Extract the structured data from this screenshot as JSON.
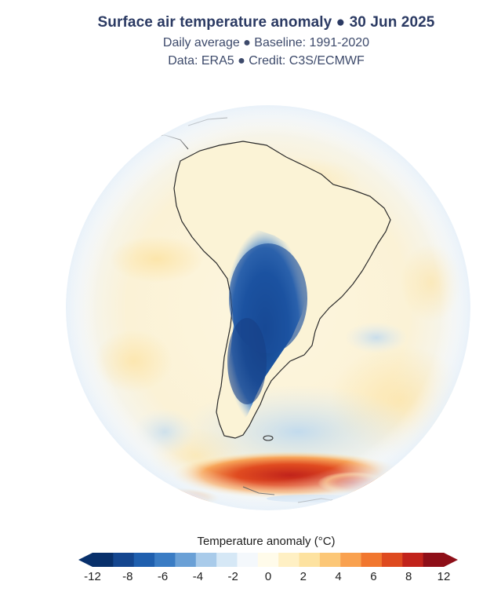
{
  "header": {
    "title": "Surface air temperature anomaly ● 30 Jun 2025",
    "subtitle": "Daily average ● Baseline: 1991-2020",
    "credit": "Data: ERA5 ● Credit: C3S/ECMWF"
  },
  "legend": {
    "title": "Temperature anomaly (°C)",
    "ticks": [
      "-12",
      "-8",
      "-6",
      "-4",
      "-2",
      "0",
      "2",
      "4",
      "6",
      "8",
      "12"
    ],
    "colors": [
      "#08306b",
      "#14468f",
      "#1f5fae",
      "#3a7cc4",
      "#6aa0d6",
      "#a9cbea",
      "#d6e8f6",
      "#f4f8fc",
      "#fffbea",
      "#fff0c4",
      "#fde2a0",
      "#fcc777",
      "#f9a14f",
      "#f1772f",
      "#de4a1f",
      "#c1231b",
      "#8e0f18"
    ]
  },
  "map": {
    "projection": "orthographic",
    "center": "South America",
    "layer": "surface-air-temperature-anomaly",
    "ocean_color": "#fbf3d8",
    "cold_color": "#14468f",
    "warm_color": "#c1231b"
  }
}
